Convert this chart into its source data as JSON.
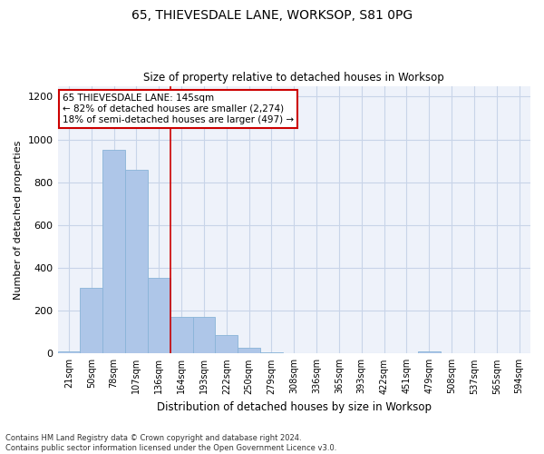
{
  "title": "65, THIEVESDALE LANE, WORKSOP, S81 0PG",
  "subtitle": "Size of property relative to detached houses in Worksop",
  "xlabel": "Distribution of detached houses by size in Worksop",
  "ylabel": "Number of detached properties",
  "categories": [
    "21sqm",
    "50sqm",
    "78sqm",
    "107sqm",
    "136sqm",
    "164sqm",
    "193sqm",
    "222sqm",
    "250sqm",
    "279sqm",
    "308sqm",
    "336sqm",
    "365sqm",
    "393sqm",
    "422sqm",
    "451sqm",
    "479sqm",
    "508sqm",
    "537sqm",
    "565sqm",
    "594sqm"
  ],
  "values": [
    10,
    305,
    950,
    860,
    355,
    170,
    170,
    85,
    25,
    5,
    0,
    0,
    0,
    0,
    0,
    0,
    10,
    0,
    0,
    0,
    0
  ],
  "bar_color": "#aec6e8",
  "bar_edgecolor": "#8ab4d8",
  "vline_color": "#cc0000",
  "vline_x_index": 4.5,
  "ylim": [
    0,
    1250
  ],
  "yticks": [
    0,
    200,
    400,
    600,
    800,
    1000,
    1200
  ],
  "annotation_text": "65 THIEVESDALE LANE: 145sqm\n← 82% of detached houses are smaller (2,274)\n18% of semi-detached houses are larger (497) →",
  "annotation_box_edgecolor": "#cc0000",
  "footnote": "Contains HM Land Registry data © Crown copyright and database right 2024.\nContains public sector information licensed under the Open Government Licence v3.0.",
  "background_color": "#eef2fa",
  "plot_background": "#ffffff",
  "grid_color": "#c8d4e8"
}
